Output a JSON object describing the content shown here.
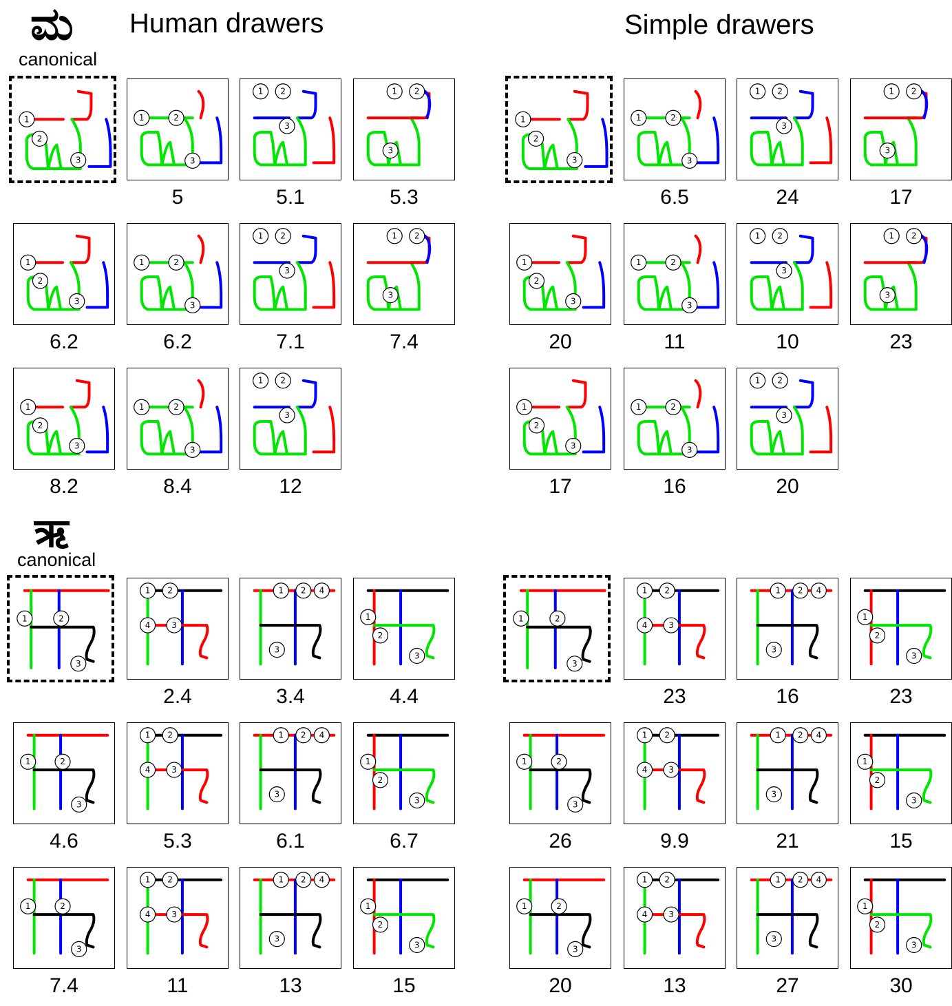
{
  "titles": {
    "human": "Human drawers",
    "simple": "Simple drawers"
  },
  "colors": {
    "stroke1": "#ff0000",
    "stroke2": "#00e600",
    "stroke3": "#0000ff",
    "stroke4": "#000000"
  },
  "characters": [
    {
      "glyph": "ಮ",
      "canonical_label": "canonical",
      "human_scores": [
        "5",
        "5.1",
        "5.3",
        "6.2",
        "6.2",
        "7.1",
        "7.4",
        "8.2",
        "8.4",
        "12"
      ],
      "simple_scores": [
        "6.5",
        "24",
        "17",
        "20",
        "11",
        "10",
        "23",
        "17",
        "16",
        "20"
      ]
    },
    {
      "glyph": "ऋ",
      "canonical_label": "canonical",
      "human_scores": [
        "2.4",
        "3.4",
        "4.4",
        "4.6",
        "5.3",
        "6.1",
        "6.7",
        "7.4",
        "11",
        "13",
        "15"
      ],
      "simple_scores": [
        "23",
        "16",
        "23",
        "26",
        "9.9",
        "21",
        "15",
        "20",
        "13",
        "27",
        "30"
      ]
    }
  ],
  "marker_labels": [
    "1",
    "2",
    "3",
    "4"
  ]
}
